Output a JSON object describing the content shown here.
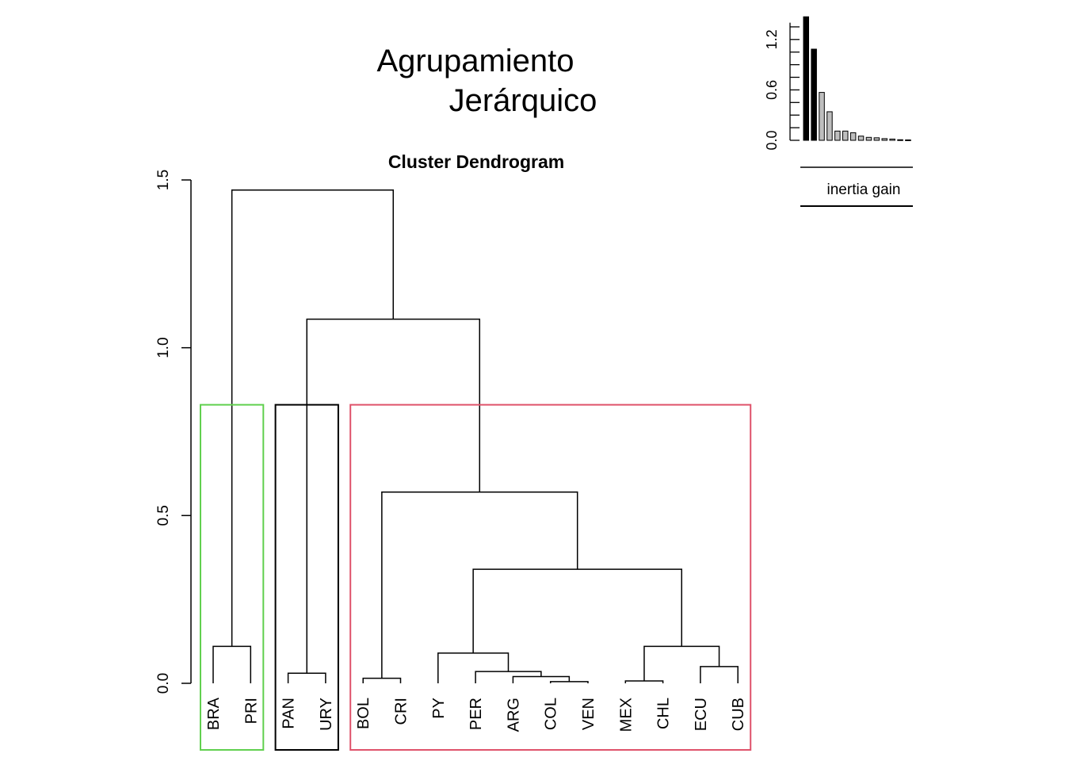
{
  "chart_data": [
    {
      "type": "dendrogram",
      "title_lines": [
        "Agrupamiento",
        "Jerárquico"
      ],
      "subtitle": "Cluster Dendrogram",
      "ylim": [
        0,
        1.5
      ],
      "y_ticks": [
        0.0,
        0.5,
        1.0,
        1.5
      ],
      "y_tick_labels": [
        "0.0",
        "0.5",
        "1.0",
        "1.5"
      ],
      "leaves": [
        "BRA",
        "PRI",
        "PAN",
        "URY",
        "BOL",
        "CRI",
        "PY",
        "PER",
        "ARG",
        "COL",
        "VEN",
        "MEX",
        "CHL",
        "ECU",
        "CUB"
      ],
      "merges": [
        {
          "left": "COL",
          "right": "VEN",
          "height": 0.005
        },
        {
          "left": "MEX",
          "right": "CHL",
          "height": 0.007
        },
        {
          "left": "BOL",
          "right": "CRI",
          "height": 0.015
        },
        {
          "left": "ARG",
          "right": "COL+VEN",
          "height": 0.02
        },
        {
          "left": "PAN",
          "right": "URY",
          "height": 0.03
        },
        {
          "left": "PER",
          "right": "ARG+COL+VEN",
          "height": 0.035
        },
        {
          "left": "ECU",
          "right": "CUB",
          "height": 0.05
        },
        {
          "left": "PY",
          "right": "PER+ARG+COL+VEN",
          "height": 0.09
        },
        {
          "left": "MEX+CHL",
          "right": "ECU+CUB",
          "height": 0.11
        },
        {
          "left": "BRA",
          "right": "PRI",
          "height": 0.11
        },
        {
          "left": "PY..VEN",
          "right": "MEX..CUB",
          "height": 0.34
        },
        {
          "left": "BOL+CRI",
          "right": "PY..CUB",
          "height": 0.57
        },
        {
          "left": "PAN+URY",
          "right": "BOL..CUB",
          "height": 1.085
        },
        {
          "left": "BRA+PRI",
          "right": "PAN..CUB",
          "height": 1.47
        }
      ],
      "clusters": [
        {
          "members": [
            "BRA",
            "PRI"
          ],
          "color": "#61D04F"
        },
        {
          "members": [
            "PAN",
            "URY"
          ],
          "color": "#000000"
        },
        {
          "members": [
            "BOL",
            "CRI",
            "PY",
            "PER",
            "ARG",
            "COL",
            "VEN",
            "MEX",
            "CHL",
            "ECU",
            "CUB"
          ],
          "color": "#DF536B"
        }
      ],
      "cut_height": 0.83
    },
    {
      "type": "bar",
      "xlabel": "inertia gain",
      "ylim": [
        0,
        1.5
      ],
      "y_ticks": [
        0.0,
        0.6,
        1.2
      ],
      "y_tick_labels": [
        "0.0",
        "0.6",
        "1.2"
      ],
      "values": [
        1.47,
        1.085,
        0.57,
        0.34,
        0.11,
        0.11,
        0.09,
        0.05,
        0.035,
        0.03,
        0.02,
        0.015,
        0.007,
        0.005
      ],
      "highlighted_count": 2,
      "colors": {
        "highlighted": "#000000",
        "other": "#BEBEBE"
      }
    }
  ]
}
